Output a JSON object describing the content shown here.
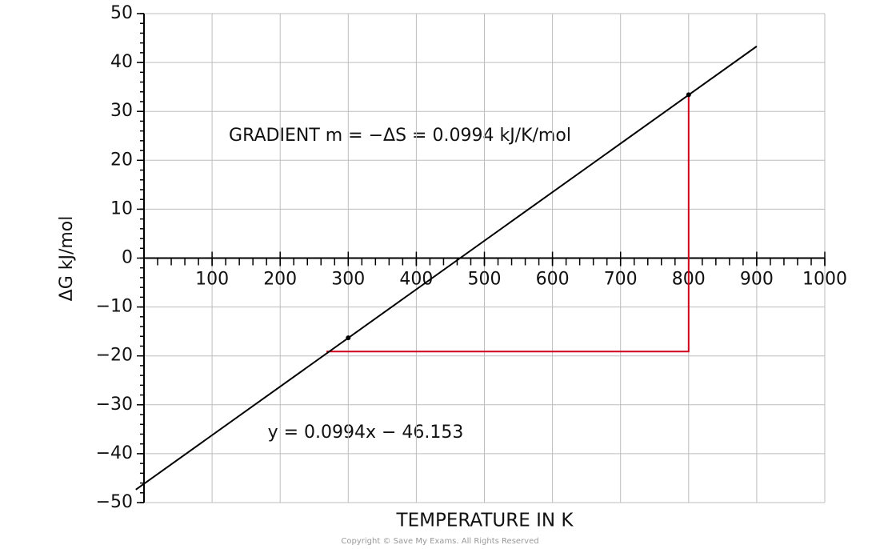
{
  "chart_data": {
    "type": "line",
    "x_label": "TEMPERATURE  IN  K",
    "y_label": "ΔG kJ/mol",
    "annotations": [
      "GRADIENT  m = −ΔS = 0.0994 kJ/K/mol",
      "y = 0.0994x − 46.153"
    ],
    "copyright": "Copyright © Save My Exams. All Rights Reserved",
    "xlim": [
      0,
      1000
    ],
    "ylim": [
      -50,
      50
    ],
    "xticks": [
      100,
      200,
      300,
      400,
      500,
      600,
      700,
      800,
      900,
      1000
    ],
    "yticks": [
      {
        "value": -50,
        "label": "−50"
      },
      {
        "value": -40,
        "label": "−40"
      },
      {
        "value": -30,
        "label": "−30"
      },
      {
        "value": -20,
        "label": "−20"
      },
      {
        "value": -10,
        "label": "−10"
      },
      0,
      10,
      20,
      30,
      40,
      50
    ],
    "x_minor_step": 20,
    "y_minor_step": 2,
    "grid": true,
    "line": {
      "x": [
        -12,
        900
      ],
      "y": [
        -47.35,
        43.31
      ],
      "color": "#000000"
    },
    "points": {
      "x": [
        300,
        800
      ],
      "y": [
        -16.3,
        33.4
      ],
      "color": "#000000"
    },
    "triangle": {
      "x": [
        268,
        800,
        800
      ],
      "y": [
        -19.1,
        -19.1,
        33.4
      ],
      "color": "#d0021b"
    }
  }
}
